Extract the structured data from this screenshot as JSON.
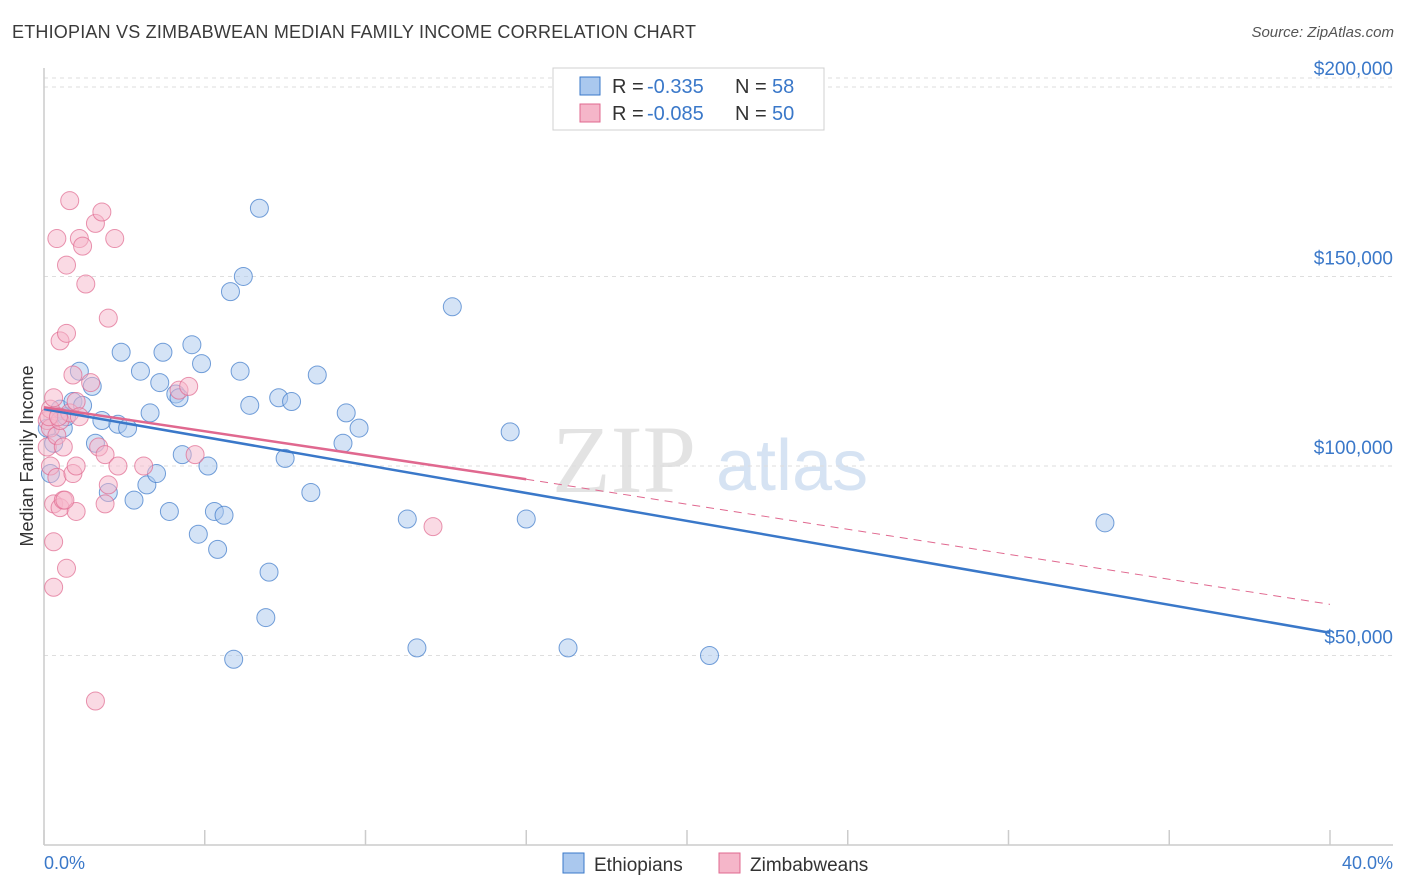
{
  "title": "ETHIOPIAN VS ZIMBABWEAN MEDIAN FAMILY INCOME CORRELATION CHART",
  "source": "Source: ZipAtlas.com",
  "watermark": {
    "zip": "ZIP",
    "atlas": "atlas"
  },
  "legend": {
    "rows": [
      {
        "r_label": "R =",
        "r_value": "-0.335",
        "n_label": "N =",
        "n_value": "58"
      },
      {
        "r_label": "R =",
        "r_value": "-0.085",
        "n_label": "N =",
        "n_value": "50"
      }
    ]
  },
  "bottom_legend": [
    "Ethiopians",
    "Zimbabweans"
  ],
  "colors": {
    "blue": "#3a78c9",
    "blue_fill": "#aac8ee",
    "pink": "#e0688f",
    "pink_fill": "#f5b6c9"
  },
  "chart_data": {
    "type": "scatter",
    "ylabel": "Median Family Income",
    "xlim": [
      0,
      40
    ],
    "ylim": [
      0,
      205000
    ],
    "y_ticks": [
      {
        "value": 50000,
        "label": "$50,000"
      },
      {
        "value": 100000,
        "label": "$100,000"
      },
      {
        "value": 150000,
        "label": "$150,000"
      },
      {
        "value": 200000,
        "label": "$200,000"
      }
    ],
    "x_tick_labels": [
      {
        "value": 0,
        "label": "0.0%"
      },
      {
        "value": 40,
        "label": "40.0%"
      }
    ],
    "series": [
      {
        "name": "Ethiopians",
        "color": "#3a78c9",
        "fill": "#aac8ee",
        "trend": {
          "x0": 0,
          "y0": 115000,
          "x1": 40,
          "y1": 56000,
          "style": "solid"
        },
        "points": [
          [
            0.1,
            110000
          ],
          [
            0.2,
            98000
          ],
          [
            0.5,
            115000
          ],
          [
            0.6,
            110000
          ],
          [
            0.7,
            113000
          ],
          [
            0.9,
            117000
          ],
          [
            1.2,
            116000
          ],
          [
            1.1,
            125000
          ],
          [
            1.5,
            121000
          ],
          [
            1.6,
            106000
          ],
          [
            1.8,
            112000
          ],
          [
            2.0,
            93000
          ],
          [
            2.3,
            111000
          ],
          [
            2.6,
            110000
          ],
          [
            2.4,
            130000
          ],
          [
            2.8,
            91000
          ],
          [
            3.0,
            125000
          ],
          [
            3.2,
            95000
          ],
          [
            3.3,
            114000
          ],
          [
            3.5,
            98000
          ],
          [
            3.6,
            122000
          ],
          [
            3.7,
            130000
          ],
          [
            3.9,
            88000
          ],
          [
            4.1,
            119000
          ],
          [
            4.2,
            118000
          ],
          [
            4.3,
            103000
          ],
          [
            4.6,
            132000
          ],
          [
            4.8,
            82000
          ],
          [
            4.9,
            127000
          ],
          [
            5.1,
            100000
          ],
          [
            5.3,
            88000
          ],
          [
            5.4,
            78000
          ],
          [
            5.6,
            87000
          ],
          [
            5.8,
            146000
          ],
          [
            5.9,
            49000
          ],
          [
            6.1,
            125000
          ],
          [
            6.2,
            150000
          ],
          [
            6.4,
            116000
          ],
          [
            6.7,
            168000
          ],
          [
            6.9,
            60000
          ],
          [
            7.0,
            72000
          ],
          [
            7.3,
            118000
          ],
          [
            7.5,
            102000
          ],
          [
            7.7,
            117000
          ],
          [
            8.3,
            93000
          ],
          [
            8.5,
            124000
          ],
          [
            9.3,
            106000
          ],
          [
            9.4,
            114000
          ],
          [
            9.8,
            110000
          ],
          [
            11.3,
            86000
          ],
          [
            11.6,
            52000
          ],
          [
            12.7,
            142000
          ],
          [
            14.5,
            109000
          ],
          [
            15.0,
            86000
          ],
          [
            16.3,
            52000
          ],
          [
            20.7,
            50000
          ],
          [
            33.0,
            85000
          ],
          [
            0.3,
            106000
          ]
        ]
      },
      {
        "name": "Zimbabweans",
        "color": "#e0688f",
        "fill": "#f5b6c9",
        "trend": {
          "x0": 0,
          "y0": 115500,
          "x1": 15,
          "y1": 96500,
          "x_dash_end": 40,
          "y_dash_end": 63500,
          "style": "solid-then-dashed"
        },
        "points": [
          [
            0.1,
            112000
          ],
          [
            0.1,
            105000
          ],
          [
            0.2,
            115000
          ],
          [
            0.2,
            110000
          ],
          [
            0.2,
            100000
          ],
          [
            0.3,
            118000
          ],
          [
            0.3,
            90000
          ],
          [
            0.3,
            80000
          ],
          [
            0.3,
            68000
          ],
          [
            0.4,
            108000
          ],
          [
            0.4,
            97000
          ],
          [
            0.4,
            160000
          ],
          [
            0.5,
            133000
          ],
          [
            0.5,
            112000
          ],
          [
            0.5,
            89000
          ],
          [
            0.6,
            91000
          ],
          [
            0.6,
            105000
          ],
          [
            0.7,
            153000
          ],
          [
            0.7,
            135000
          ],
          [
            0.7,
            73000
          ],
          [
            0.8,
            170000
          ],
          [
            0.8,
            114000
          ],
          [
            0.9,
            98000
          ],
          [
            0.9,
            124000
          ],
          [
            1.0,
            117000
          ],
          [
            1.0,
            100000
          ],
          [
            1.0,
            88000
          ],
          [
            1.1,
            113000
          ],
          [
            1.1,
            160000
          ],
          [
            1.2,
            158000
          ],
          [
            1.3,
            148000
          ],
          [
            1.6,
            164000
          ],
          [
            1.6,
            38000
          ],
          [
            1.7,
            105000
          ],
          [
            1.8,
            167000
          ],
          [
            1.9,
            103000
          ],
          [
            1.9,
            90000
          ],
          [
            2.0,
            139000
          ],
          [
            2.0,
            95000
          ],
          [
            2.2,
            160000
          ],
          [
            2.3,
            100000
          ],
          [
            3.1,
            100000
          ],
          [
            4.2,
            120000
          ],
          [
            4.5,
            121000
          ],
          [
            4.7,
            103000
          ],
          [
            12.1,
            84000
          ],
          [
            0.15,
            113000
          ],
          [
            0.45,
            113000
          ],
          [
            0.65,
            91000
          ],
          [
            1.45,
            122000
          ]
        ]
      }
    ]
  }
}
